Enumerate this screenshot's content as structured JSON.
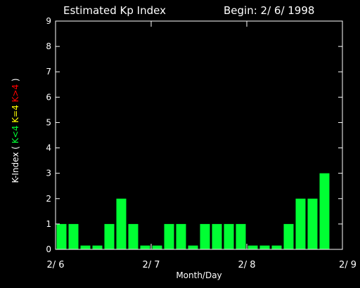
{
  "colors": {
    "background": "#000000",
    "foreground": "#ffffff",
    "bar_default": "#00ff33",
    "legend_low": "#00ff33",
    "legend_mid": "#ffff00",
    "legend_high": "#ff0000"
  },
  "chart_data": {
    "type": "bar",
    "title": "Estimated Kp Index",
    "begin_label": "Begin: 2/ 6/ 1998",
    "xlabel": "Month/Day",
    "ylabel_parts": [
      {
        "text": "K-Index (",
        "color": "#ffffff"
      },
      {
        "text": "K<4",
        "color": "#00ff33"
      },
      {
        "text": "K=4",
        "color": "#ffff00"
      },
      {
        "text": "K>4",
        "color": "#ff0000"
      },
      {
        "text": ")",
        "color": "#ffffff"
      }
    ],
    "ylim": [
      0,
      9
    ],
    "yticks": [
      0,
      1,
      2,
      3,
      4,
      5,
      6,
      7,
      8,
      9
    ],
    "xlim": [
      0,
      72
    ],
    "xticks": [
      {
        "hours": 0,
        "label": "2/ 6"
      },
      {
        "hours": 24,
        "label": "2/ 7"
      },
      {
        "hours": 48,
        "label": "2/ 8"
      },
      {
        "hours": 72,
        "label": "2/ 9"
      }
    ],
    "bar_interval_hours": 3,
    "values": [
      1,
      1,
      0.15,
      0.15,
      1,
      2,
      1,
      0.15,
      0.15,
      1,
      1,
      0.15,
      1,
      1,
      1,
      1,
      0.15,
      0.15,
      0.15,
      1,
      2,
      2,
      3
    ],
    "grid": false,
    "legend": "none"
  }
}
